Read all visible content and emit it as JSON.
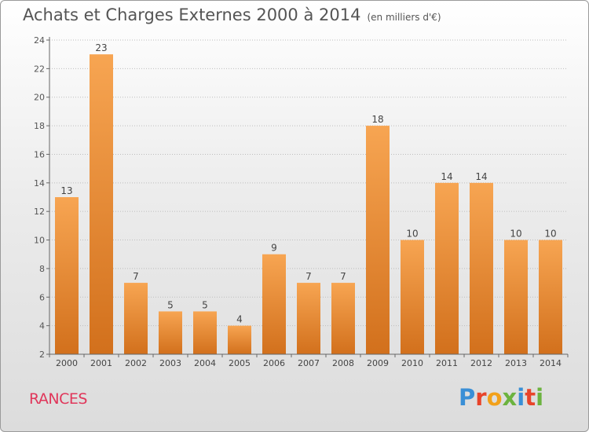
{
  "header": {
    "title": "Achats et Charges Externes 2000 à 2014",
    "unit": "(en milliers d'€)"
  },
  "footer": {
    "commune": "RANCES",
    "logo_text": "Proxiti",
    "logo_colors": [
      "#3a8fd6",
      "#e8442a",
      "#f2a11a",
      "#6cb33f",
      "#3a8fd6",
      "#e8442a",
      "#6cb33f"
    ]
  },
  "colors": {
    "bar_light": "#f7a552",
    "bar_dark": "#d2701c",
    "axis": "#666666",
    "grid": "#bdbdbd"
  },
  "chart_data": {
    "type": "bar",
    "title": "Achats et Charges Externes 2000 à 2014",
    "categories": [
      "2000",
      "2001",
      "2002",
      "2003",
      "2004",
      "2005",
      "2006",
      "2007",
      "2008",
      "2009",
      "2010",
      "2011",
      "2012",
      "2013",
      "2014"
    ],
    "values": [
      13,
      23,
      7,
      5,
      5,
      4,
      9,
      7,
      7,
      18,
      10,
      14,
      14,
      10,
      10
    ],
    "ylim": [
      2,
      24
    ],
    "yticks": [
      2,
      4,
      6,
      8,
      10,
      12,
      14,
      16,
      18,
      20,
      22,
      24
    ],
    "grid": true,
    "xlabel": "",
    "ylabel": ""
  }
}
